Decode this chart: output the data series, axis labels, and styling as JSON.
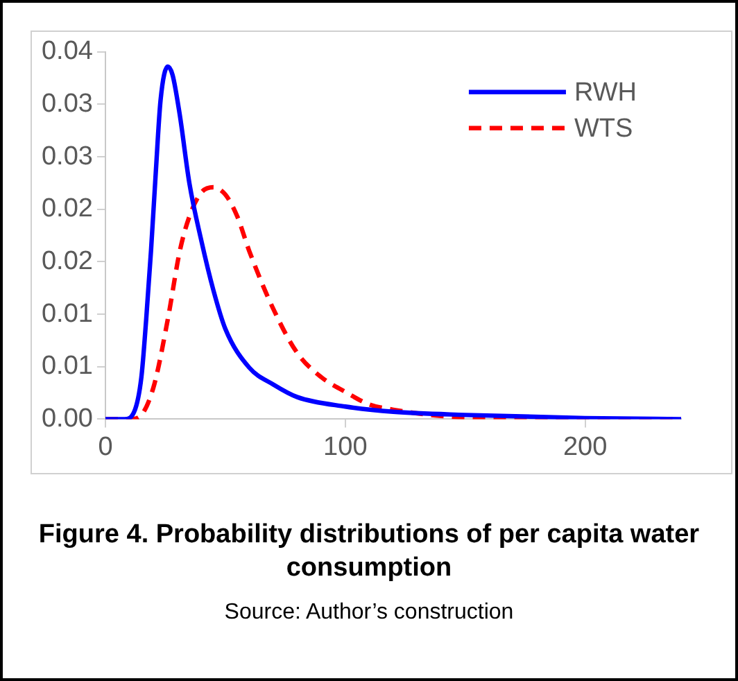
{
  "chart_data": {
    "type": "line",
    "title": "Figure 4. Probability distributions of per capita water consumption",
    "annotations": [
      "Source: Author’s construction"
    ],
    "xlim": [
      0,
      240
    ],
    "xticks": [
      0,
      100,
      200
    ],
    "ylim": [
      0,
      0.035
    ],
    "yticks": [
      {
        "value": 0,
        "label": "0.00"
      },
      {
        "value": 0.005,
        "label": "0.01"
      },
      {
        "value": 0.01,
        "label": "0.01"
      },
      {
        "value": 0.015,
        "label": "0.02"
      },
      {
        "value": 0.02,
        "label": "0.02"
      },
      {
        "value": 0.025,
        "label": "0.03"
      },
      {
        "value": 0.03,
        "label": "0.03"
      },
      {
        "value": 0.035,
        "label": "0.04"
      }
    ],
    "grid": false,
    "legend": "top right",
    "marker": "none",
    "series": [
      {
        "name": "RWH",
        "color": "#0000ff",
        "line_style": "solid",
        "x": [
          0,
          8,
          12,
          15,
          17,
          19,
          21,
          23,
          26,
          28,
          31,
          35,
          40,
          45,
          50,
          60,
          70,
          80,
          100,
          120,
          150,
          200,
          240
        ],
        "values": [
          0,
          0,
          0.0007,
          0.004,
          0.0095,
          0.016,
          0.0235,
          0.0304,
          0.0336,
          0.0328,
          0.029,
          0.0225,
          0.017,
          0.0123,
          0.0086,
          0.0049,
          0.0033,
          0.0021,
          0.0012,
          0.0007,
          0.0004,
          0.0001,
          0
        ]
      },
      {
        "name": "WTS",
        "color": "#ff0000",
        "line_style": "dashed",
        "x": [
          0,
          10,
          14,
          20,
          26,
          31,
          35,
          40,
          45,
          50,
          55,
          60,
          70,
          80,
          90,
          100,
          110,
          120,
          140,
          160,
          200,
          240
        ],
        "values": [
          0,
          0,
          0.0002,
          0.003,
          0.0095,
          0.016,
          0.0193,
          0.0216,
          0.0221,
          0.0214,
          0.0193,
          0.016,
          0.0105,
          0.0063,
          0.004,
          0.0026,
          0.0014,
          0.0009,
          0.0003,
          0.0001,
          0,
          0
        ]
      }
    ]
  }
}
